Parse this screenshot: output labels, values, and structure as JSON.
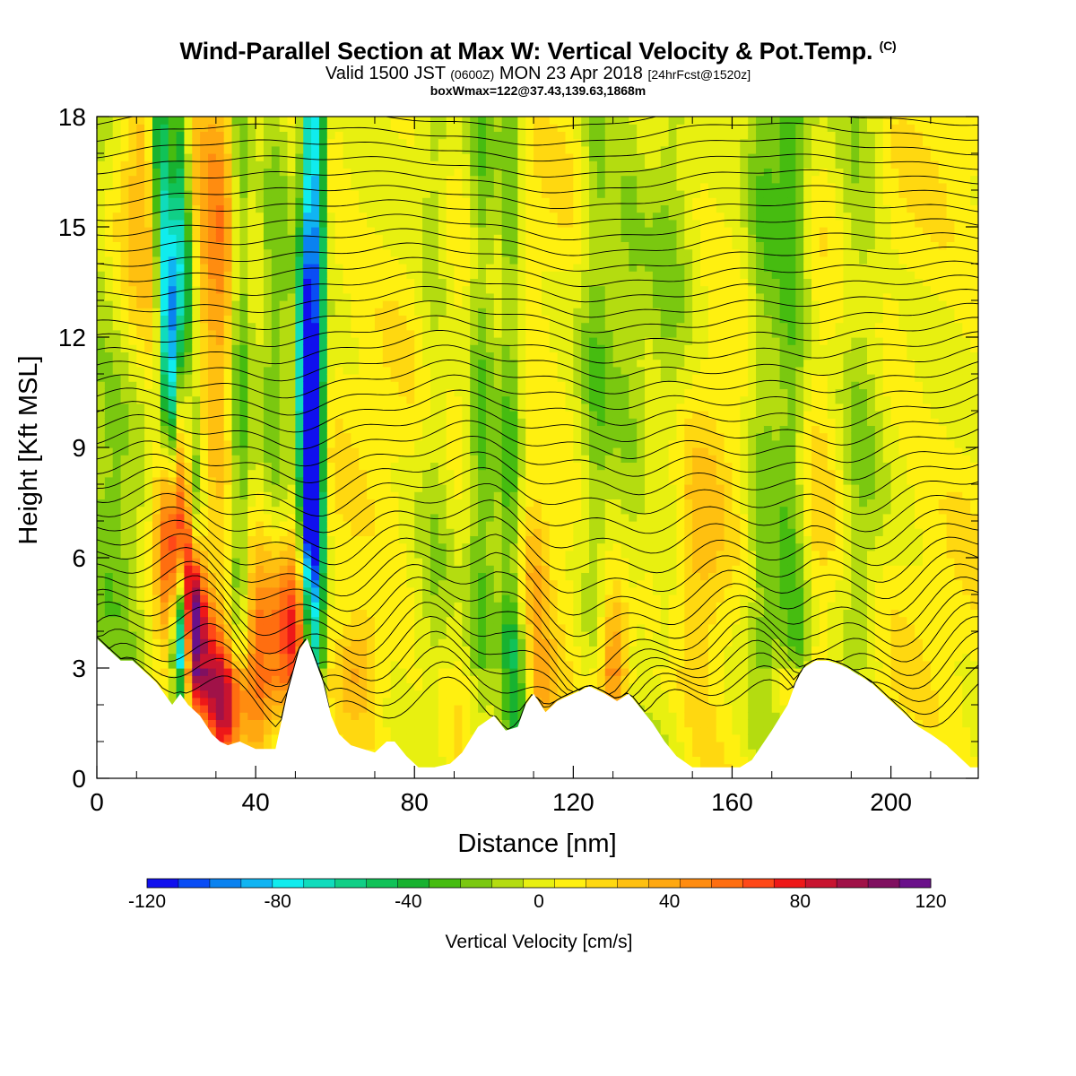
{
  "header": {
    "title": "Wind-Parallel Section at Max W: Vertical Velocity & Pot.Temp.",
    "copyright": "(C)",
    "valid_prefix": "Valid 1500 JST",
    "valid_utc": "(0600Z)",
    "valid_date": "MON 23 Apr 2018",
    "forecast_tag": "[24hrFcst@1520z]",
    "boxinfo": "boxWmax=122@37.43,139.63,1868m"
  },
  "chart_data": {
    "type": "heatmap",
    "title": "Wind-Parallel Section at Max W: Vertical Velocity & Pot.Temp.",
    "xlabel": "Distance [nm]",
    "ylabel": "Height [Kft MSL]",
    "xlim": [
      0,
      222
    ],
    "ylim": [
      0,
      18
    ],
    "xticks": [
      0,
      40,
      80,
      120,
      160,
      200
    ],
    "yticks": [
      0,
      3,
      6,
      9,
      12,
      15,
      18
    ],
    "xtick_labels": [
      "0",
      "40",
      "80",
      "120",
      "160",
      "200"
    ],
    "ytick_labels": [
      "0",
      "3",
      "6",
      "9",
      "12",
      "15",
      "18"
    ],
    "colorbar": {
      "label": "Vertical Velocity [cm/s]",
      "min": -120,
      "max": 120,
      "tick_values": [
        -120,
        -80,
        -40,
        0,
        40,
        80,
        120
      ],
      "tick_labels": [
        "-120",
        "-80",
        "-40",
        "0",
        "40",
        "80",
        "120"
      ],
      "colors": [
        "#1010ee",
        "#0a4df5",
        "#0a82f0",
        "#10b4f2",
        "#10ecee",
        "#10dcbc",
        "#10cf86",
        "#10c258",
        "#18b230",
        "#46bc10",
        "#7ac810",
        "#b4dc10",
        "#e8f010",
        "#fff010",
        "#ffd810",
        "#ffc010",
        "#ffa810",
        "#ff8c10",
        "#ff6e10",
        "#ff4818",
        "#ee1818",
        "#c81430",
        "#a01248",
        "#801060",
        "#6a108a"
      ]
    },
    "terrain_kft": [
      [
        0,
        3.8
      ],
      [
        3,
        3.5
      ],
      [
        6,
        3.2
      ],
      [
        9,
        3.2
      ],
      [
        12,
        2.9
      ],
      [
        15,
        2.6
      ],
      [
        17,
        2.3
      ],
      [
        19,
        2.0
      ],
      [
        21,
        2.3
      ],
      [
        23,
        2.0
      ],
      [
        26,
        1.7
      ],
      [
        29,
        1.2
      ],
      [
        31,
        1.0
      ],
      [
        33,
        0.9
      ],
      [
        36,
        1.0
      ],
      [
        40,
        0.8
      ],
      [
        45,
        0.8
      ],
      [
        48,
        2.3
      ],
      [
        51,
        3.5
      ],
      [
        53,
        3.8
      ],
      [
        55,
        3.2
      ],
      [
        57,
        2.6
      ],
      [
        59,
        1.7
      ],
      [
        61,
        1.2
      ],
      [
        64,
        0.9
      ],
      [
        67,
        0.8
      ],
      [
        70,
        0.7
      ],
      [
        73,
        1.0
      ],
      [
        75,
        1.0
      ],
      [
        78,
        0.6
      ],
      [
        81,
        0.3
      ],
      [
        85,
        0.3
      ],
      [
        89,
        0.4
      ],
      [
        92,
        0.7
      ],
      [
        96,
        1.4
      ],
      [
        100,
        1.7
      ],
      [
        103,
        1.3
      ],
      [
        106,
        1.4
      ],
      [
        108,
        2.0
      ],
      [
        110,
        2.3
      ],
      [
        113,
        1.8
      ],
      [
        116,
        2.1
      ],
      [
        120,
        2.3
      ],
      [
        124,
        2.5
      ],
      [
        128,
        2.3
      ],
      [
        131,
        2.1
      ],
      [
        134,
        2.3
      ],
      [
        137,
        1.9
      ],
      [
        140,
        1.5
      ],
      [
        143,
        1.0
      ],
      [
        146,
        0.6
      ],
      [
        150,
        0.3
      ],
      [
        156,
        0.3
      ],
      [
        162,
        0.3
      ],
      [
        165,
        0.5
      ],
      [
        170,
        1.3
      ],
      [
        174,
        2.0
      ],
      [
        176,
        2.6
      ],
      [
        178,
        3.0
      ],
      [
        181,
        3.2
      ],
      [
        184,
        3.2
      ],
      [
        187,
        3.1
      ],
      [
        189,
        3.0
      ],
      [
        192,
        2.8
      ],
      [
        195,
        2.6
      ],
      [
        198,
        2.3
      ],
      [
        201,
        2.0
      ],
      [
        204,
        1.7
      ],
      [
        207,
        1.4
      ],
      [
        210,
        1.2
      ],
      [
        214,
        0.9
      ],
      [
        217,
        0.6
      ],
      [
        220,
        0.3
      ],
      [
        222,
        0.3
      ]
    ],
    "wbands": [
      [
        20,
        -85,
        1.8
      ],
      [
        25,
        -55,
        1.8
      ],
      [
        36,
        -40,
        2.0
      ],
      [
        53.5,
        -80,
        1.6
      ],
      [
        56,
        -55,
        1.3
      ],
      [
        85,
        -15,
        3.0
      ],
      [
        97,
        -30,
        2.5
      ],
      [
        104,
        -30,
        2.0
      ],
      [
        126,
        -25,
        3.0
      ],
      [
        134,
        -18,
        3.0
      ],
      [
        144,
        -20,
        4.0
      ],
      [
        168,
        -25,
        3.0
      ],
      [
        175,
        -35,
        3.0
      ],
      [
        192,
        -20,
        4.0
      ],
      [
        4,
        -25,
        6.0
      ],
      [
        45,
        -25,
        3.0
      ]
    ],
    "wblobs": [
      [
        19,
        7.2,
        100,
        2.5,
        2.0
      ],
      [
        21,
        5.8,
        85,
        2.0,
        1.5
      ],
      [
        25,
        4.5,
        115,
        1.8,
        1.5
      ],
      [
        27,
        3.0,
        65,
        3.0,
        1.5
      ],
      [
        33,
        2.0,
        75,
        3.5,
        1.3
      ],
      [
        41,
        3.2,
        55,
        3.0,
        2.0
      ],
      [
        47,
        3.8,
        55,
        3.0,
        1.8
      ],
      [
        52,
        4.0,
        50,
        3.0,
        1.5
      ],
      [
        31,
        13.5,
        40,
        4.0,
        4.0
      ],
      [
        12,
        16.5,
        30,
        8.0,
        3.0
      ],
      [
        22,
        10.0,
        45,
        2.0,
        2.5
      ],
      [
        66,
        3.0,
        35,
        4.0,
        1.2
      ],
      [
        108,
        2.2,
        40,
        4.0,
        1.0
      ],
      [
        110,
        5.5,
        30,
        3.0,
        2.0
      ],
      [
        130,
        3.0,
        55,
        3.0,
        1.5
      ],
      [
        176,
        2.6,
        30,
        3.0,
        1.0
      ],
      [
        150,
        5.2,
        25,
        6.0,
        3.0
      ],
      [
        180,
        7.0,
        20,
        6.0,
        2.0
      ],
      [
        21,
        4.5,
        -75,
        1.2,
        1.5
      ],
      [
        107,
        1.8,
        -55,
        2.5,
        1.5
      ],
      [
        105,
        3.0,
        -30,
        3.0,
        1.5
      ],
      [
        177,
        3.5,
        -30,
        2.0,
        1.0
      ],
      [
        54,
        8.0,
        -70,
        1.5,
        2.5
      ],
      [
        52,
        11.0,
        -60,
        1.5,
        2.0
      ],
      [
        20,
        13.0,
        -60,
        2.0,
        2.5
      ]
    ]
  },
  "colorbar_tick_labels": [
    "-120",
    "-80",
    "-40",
    "0",
    "40",
    "80",
    "120"
  ]
}
